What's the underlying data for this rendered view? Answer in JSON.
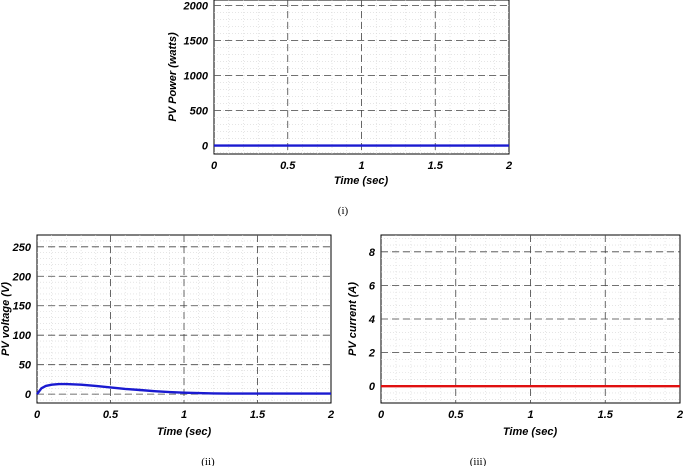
{
  "chart_data": [
    {
      "type": "line",
      "caption": "(i)",
      "xlabel": "Time (sec)",
      "ylabel": "PV Power (watts)",
      "xlim": [
        0,
        2
      ],
      "ylim": [
        -120,
        2080
      ],
      "xticks": [
        0,
        0.5,
        1,
        1.5,
        2
      ],
      "yticks": [
        0,
        500,
        1000,
        1500,
        2000
      ],
      "grid": true,
      "series": [
        {
          "color": "#1a1ad0",
          "x": [
            0,
            2
          ],
          "y": [
            0,
            0
          ]
        }
      ]
    },
    {
      "type": "line",
      "caption": "(ii)",
      "xlabel": "Time (sec)",
      "ylabel": "PV voltage (V)",
      "xlim": [
        0,
        2
      ],
      "ylim": [
        -15,
        270
      ],
      "xticks": [
        0,
        0.5,
        1,
        1.5,
        2
      ],
      "yticks": [
        0,
        50,
        100,
        150,
        200,
        250
      ],
      "grid": true,
      "series": [
        {
          "color": "#1a1ad0",
          "x": [
            0,
            0.03,
            0.06,
            0.1,
            0.15,
            0.2,
            0.3,
            0.4,
            0.5,
            0.6,
            0.7,
            0.8,
            0.9,
            1.0,
            1.1,
            1.2,
            1.3,
            1.5,
            1.7,
            2.0
          ],
          "y": [
            0,
            10,
            14,
            16,
            17,
            17,
            16,
            14,
            11.5,
            9,
            7,
            5,
            3.5,
            2.5,
            1.8,
            1.3,
            1,
            1,
            1,
            1
          ]
        }
      ]
    },
    {
      "type": "line",
      "caption": "(iii)",
      "xlabel": "Time (sec)",
      "ylabel": "PV current (A)",
      "xlim": [
        0,
        2
      ],
      "ylim": [
        -1,
        9
      ],
      "xticks": [
        0,
        0.5,
        1,
        1.5,
        2
      ],
      "yticks": [
        0,
        2,
        4,
        6,
        8
      ],
      "grid": true,
      "series": [
        {
          "color": "#e01010",
          "x": [
            0,
            2
          ],
          "y": [
            0,
            0
          ]
        }
      ]
    }
  ]
}
